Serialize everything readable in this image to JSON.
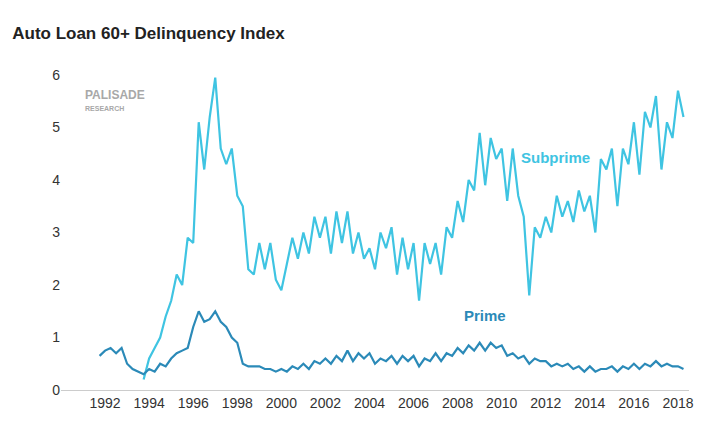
{
  "chart_data": {
    "type": "line",
    "title": "Auto Loan 60+ Delinquency Index",
    "annotations": [
      "PALISADE",
      "RESEARCH"
    ],
    "x": [
      1991.75,
      1992,
      1992.25,
      1992.5,
      1992.75,
      1993,
      1993.25,
      1993.5,
      1993.75,
      1994,
      1994.25,
      1994.5,
      1994.75,
      1995,
      1995.25,
      1995.5,
      1995.75,
      1996,
      1996.25,
      1996.5,
      1996.75,
      1997,
      1997.25,
      1997.5,
      1997.75,
      1998,
      1998.25,
      1998.5,
      1998.75,
      1999,
      1999.25,
      1999.5,
      1999.75,
      2000,
      2000.25,
      2000.5,
      2000.75,
      2001,
      2001.25,
      2001.5,
      2001.75,
      2002,
      2002.25,
      2002.5,
      2002.75,
      2003,
      2003.25,
      2003.5,
      2003.75,
      2004,
      2004.25,
      2004.5,
      2004.75,
      2005,
      2005.25,
      2005.5,
      2005.75,
      2006,
      2006.25,
      2006.5,
      2006.75,
      2007,
      2007.25,
      2007.5,
      2007.75,
      2008,
      2008.25,
      2008.5,
      2008.75,
      2009,
      2009.25,
      2009.5,
      2009.75,
      2010,
      2010.25,
      2010.5,
      2010.75,
      2011,
      2011.25,
      2011.5,
      2011.75,
      2012,
      2012.25,
      2012.5,
      2012.75,
      2013,
      2013.25,
      2013.5,
      2013.75,
      2014,
      2014.25,
      2014.5,
      2014.75,
      2015,
      2015.25,
      2015.5,
      2015.75,
      2016,
      2016.25,
      2016.5,
      2016.75,
      2017,
      2017.25,
      2017.5,
      2017.75,
      2018,
      2018.25
    ],
    "series": [
      {
        "name": "Subprime",
        "color": "#3fc4e2",
        "values": [
          null,
          null,
          null,
          null,
          null,
          null,
          null,
          null,
          0.2,
          0.6,
          0.8,
          1.0,
          1.4,
          1.7,
          2.2,
          2.0,
          2.9,
          2.8,
          5.1,
          4.2,
          5.2,
          5.95,
          4.6,
          4.3,
          4.6,
          3.7,
          3.5,
          2.3,
          2.2,
          2.8,
          2.3,
          2.8,
          2.1,
          1.9,
          2.4,
          2.9,
          2.5,
          3.0,
          2.6,
          3.3,
          2.9,
          3.3,
          2.6,
          3.4,
          2.8,
          3.4,
          2.6,
          3.0,
          2.5,
          2.7,
          2.3,
          3.0,
          2.7,
          3.1,
          2.2,
          2.9,
          2.3,
          2.8,
          1.7,
          2.8,
          2.4,
          2.8,
          2.2,
          3.1,
          2.9,
          3.6,
          3.2,
          4.0,
          3.8,
          4.9,
          3.9,
          4.8,
          4.4,
          4.6,
          3.6,
          4.6,
          3.7,
          3.3,
          1.8,
          3.1,
          2.9,
          3.3,
          3.0,
          3.7,
          3.3,
          3.6,
          3.2,
          3.8,
          3.4,
          3.7,
          3.0,
          4.4,
          4.2,
          4.6,
          3.5,
          4.6,
          4.3,
          5.1,
          4.1,
          5.3,
          5.0,
          5.6,
          4.2,
          5.1,
          4.8,
          5.7,
          5.2
        ]
      },
      {
        "name": "Prime",
        "color": "#2b8ab8",
        "values": [
          0.65,
          0.75,
          0.8,
          0.7,
          0.8,
          0.5,
          0.4,
          0.35,
          0.3,
          0.4,
          0.35,
          0.5,
          0.45,
          0.6,
          0.7,
          0.75,
          0.8,
          1.2,
          1.5,
          1.3,
          1.35,
          1.5,
          1.3,
          1.2,
          1.0,
          0.9,
          0.5,
          0.45,
          0.45,
          0.45,
          0.4,
          0.4,
          0.35,
          0.4,
          0.35,
          0.45,
          0.4,
          0.5,
          0.4,
          0.55,
          0.5,
          0.6,
          0.5,
          0.65,
          0.55,
          0.75,
          0.55,
          0.7,
          0.6,
          0.7,
          0.5,
          0.6,
          0.55,
          0.65,
          0.5,
          0.65,
          0.55,
          0.65,
          0.45,
          0.6,
          0.55,
          0.7,
          0.55,
          0.7,
          0.65,
          0.8,
          0.7,
          0.85,
          0.75,
          0.9,
          0.75,
          0.9,
          0.8,
          0.85,
          0.65,
          0.7,
          0.6,
          0.65,
          0.5,
          0.6,
          0.55,
          0.55,
          0.45,
          0.5,
          0.45,
          0.5,
          0.4,
          0.45,
          0.35,
          0.45,
          0.35,
          0.4,
          0.4,
          0.45,
          0.35,
          0.45,
          0.4,
          0.5,
          0.4,
          0.5,
          0.45,
          0.55,
          0.45,
          0.5,
          0.45,
          0.45,
          0.4
        ]
      }
    ],
    "xlim": [
      1990,
      2018.5
    ],
    "xticks": [
      1992,
      1994,
      1996,
      1998,
      2000,
      2002,
      2004,
      2006,
      2008,
      2010,
      2012,
      2014,
      2016,
      2018
    ],
    "ylim": [
      0,
      6
    ],
    "yticks": [
      0,
      1,
      2,
      3,
      4,
      5,
      6
    ],
    "grid": false
  }
}
